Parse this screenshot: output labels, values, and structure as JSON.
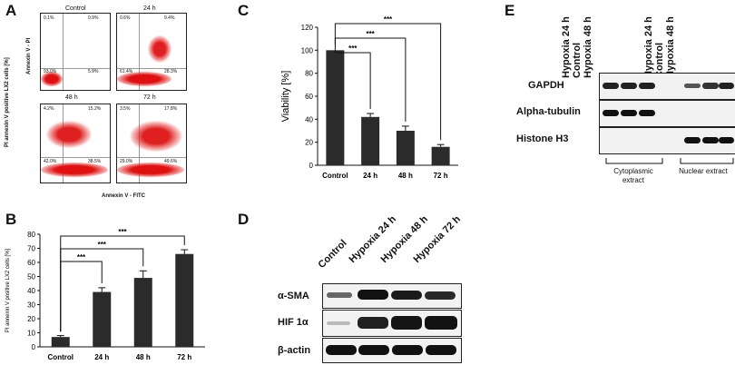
{
  "panels": {
    "A": {
      "letter": "A",
      "titles": [
        "Control",
        "24 h",
        "48 h",
        "72 h"
      ],
      "ylabel": "Annexin V - PI",
      "xlabel": "Annexin V - FITC",
      "outer_ylabel": "PI annexin V positive LX2 cells [%]",
      "quadrants": [
        {
          "ul": "0.1%",
          "ur": "0.9%",
          "ll": "93.0%",
          "lr": "5.9%"
        },
        {
          "ul": "0.6%",
          "ur": "9.4%",
          "ll": "61.4%",
          "lr": "28.3%"
        },
        {
          "ul": "4.2%",
          "ur": "15.2%",
          "ll": "42.0%",
          "lr": "38.5%"
        },
        {
          "ul": "3.5%",
          "ur": "17.8%",
          "ll": "29.0%",
          "lr": "49.6%"
        }
      ]
    },
    "B": {
      "letter": "B"
    },
    "C": {
      "letter": "C"
    },
    "D": {
      "letter": "D",
      "lanes": [
        "Control",
        "Hypoxia 24 h",
        "Hypoxia 48 h",
        "Hypoxia 72 h"
      ],
      "rows": [
        "α-SMA",
        "HIF 1α",
        "β-actin"
      ]
    },
    "E": {
      "letter": "E",
      "lanes": [
        "Control",
        "Hypoxia 24 h",
        "Hypoxia 48 h",
        "Control",
        "Hypoxia 24 h",
        "Hypoxia 48 h"
      ],
      "rows": [
        "GAPDH",
        "Alpha-tubulin",
        "Histone H3"
      ],
      "groups": [
        "Cytoplasmic extract",
        "Nuclear extract"
      ]
    }
  },
  "chart_data": [
    {
      "panel": "B",
      "type": "bar",
      "categories": [
        "Control",
        "24 h",
        "48 h",
        "72 h"
      ],
      "values": [
        7,
        39,
        49,
        66
      ],
      "errors": [
        1,
        3,
        5,
        3
      ],
      "ylabel": "PI annexin V positive LX2 cells [%]",
      "ylim": [
        0,
        80
      ],
      "yticks": [
        0,
        10,
        20,
        30,
        40,
        50,
        60,
        70,
        80
      ],
      "significance": [
        "***",
        "***",
        "***"
      ]
    },
    {
      "panel": "C",
      "type": "bar",
      "categories": [
        "Control",
        "24 h",
        "48 h",
        "72 h"
      ],
      "values": [
        100,
        42,
        30,
        16
      ],
      "errors": [
        0,
        3,
        4,
        2
      ],
      "ylabel": "Viability [%]",
      "ylim": [
        0,
        120
      ],
      "yticks": [
        0,
        20,
        40,
        60,
        80,
        100,
        120
      ],
      "significance": [
        "***",
        "***",
        "***"
      ]
    }
  ]
}
